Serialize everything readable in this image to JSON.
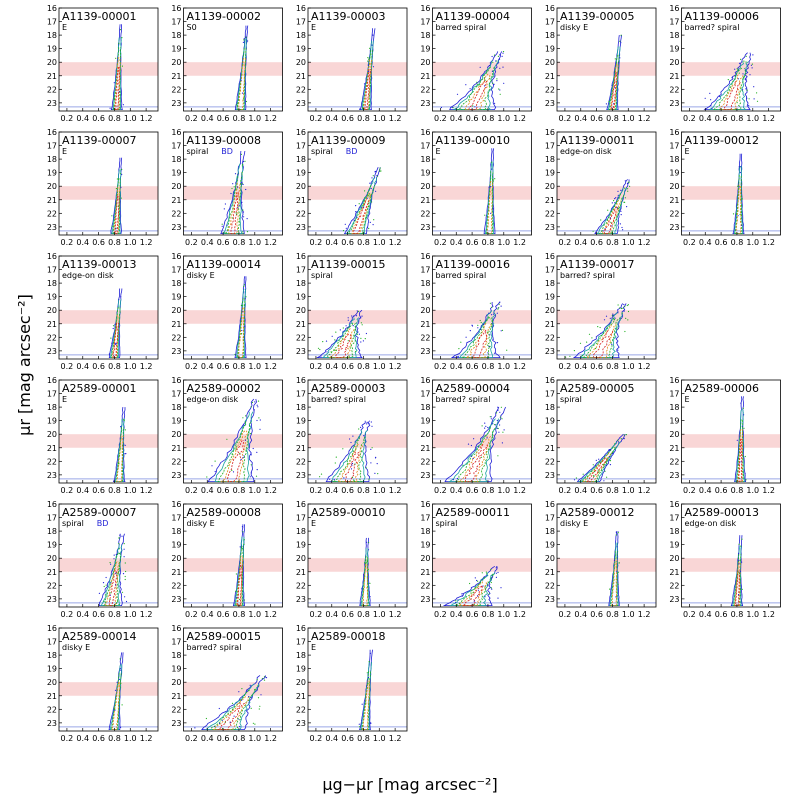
{
  "chart_data": {
    "type": "scatter",
    "layout": "small-multiples-grid",
    "xlabel": "μg−μr [mag arcsec⁻²]",
    "ylabel": "μr [mag arcsec⁻²]",
    "xlim": [
      0.1,
      1.35
    ],
    "ylim": [
      23.6,
      16
    ],
    "x_ticks": [
      "0.2",
      "0.4",
      "0.6",
      "0.8",
      "1.0",
      "1.2"
    ],
    "x_tick_values": [
      0.2,
      0.4,
      0.6,
      0.8,
      1.0,
      1.2
    ],
    "y_ticks": [
      "16",
      "17",
      "18",
      "19",
      "20",
      "21",
      "22",
      "23"
    ],
    "y_tick_values": [
      16,
      17,
      18,
      19,
      20,
      21,
      22,
      23
    ],
    "shaded_band": [
      20,
      21
    ],
    "limit_line": 23.3,
    "panels": [
      {
        "id": "A1139-00001",
        "morph": "E",
        "bd": "",
        "shape": "narrow",
        "tipx": 0.88,
        "tipy": 17.2,
        "basex": 0.83
      },
      {
        "id": "A1139-00002",
        "morph": "S0",
        "bd": "",
        "shape": "narrow",
        "tipx": 0.9,
        "tipy": 17.3,
        "basex": 0.82
      },
      {
        "id": "A1139-00003",
        "morph": "E",
        "bd": "",
        "shape": "narrow",
        "tipx": 0.93,
        "tipy": 17.5,
        "basex": 0.83
      },
      {
        "id": "A1139-00004",
        "morph": "barred spiral",
        "bd": "",
        "shape": "broad",
        "tipx": 0.95,
        "tipy": 19.2,
        "basex": 0.6
      },
      {
        "id": "A1139-00005",
        "morph": "disky E",
        "bd": "",
        "shape": "narrow",
        "tipx": 0.9,
        "tipy": 18.0,
        "basex": 0.8
      },
      {
        "id": "A1139-00006",
        "morph": "barred? spiral",
        "bd": "",
        "shape": "broad",
        "tipx": 0.95,
        "tipy": 19.3,
        "basex": 0.68
      },
      {
        "id": "A1139-00007",
        "morph": "E",
        "bd": "",
        "shape": "narrow",
        "tipx": 0.88,
        "tipy": 17.9,
        "basex": 0.82
      },
      {
        "id": "A1139-00008",
        "morph": "spiral",
        "bd": "BD",
        "shape": "medium",
        "tipx": 0.85,
        "tipy": 17.4,
        "basex": 0.72
      },
      {
        "id": "A1139-00009",
        "morph": "spiral",
        "bd": "BD",
        "shape": "medium",
        "tipx": 1.0,
        "tipy": 18.6,
        "basex": 0.7
      },
      {
        "id": "A1139-00010",
        "morph": "E",
        "bd": "",
        "shape": "narrow",
        "tipx": 0.86,
        "tipy": 17.2,
        "basex": 0.82
      },
      {
        "id": "A1139-00011",
        "morph": "edge-on disk",
        "bd": "",
        "shape": "medium",
        "tipx": 1.0,
        "tipy": 19.5,
        "basex": 0.72
      },
      {
        "id": "A1139-00012",
        "morph": "E",
        "bd": "",
        "shape": "narrow",
        "tipx": 0.85,
        "tipy": 17.6,
        "basex": 0.82
      },
      {
        "id": "A1139-00013",
        "morph": "edge-on disk",
        "bd": "",
        "shape": "narrow",
        "tipx": 0.88,
        "tipy": 18.4,
        "basex": 0.8
      },
      {
        "id": "A1139-00014",
        "morph": "disky E",
        "bd": "",
        "shape": "narrow",
        "tipx": 0.88,
        "tipy": 17.5,
        "basex": 0.82
      },
      {
        "id": "A1139-00015",
        "morph": "spiral",
        "bd": "",
        "shape": "broad",
        "tipx": 0.75,
        "tipy": 20.0,
        "basex": 0.5
      },
      {
        "id": "A1139-00016",
        "morph": "barred spiral",
        "bd": "",
        "shape": "broad",
        "tipx": 0.9,
        "tipy": 19.4,
        "basex": 0.65
      },
      {
        "id": "A1139-00017",
        "morph": "barred? spiral",
        "bd": "",
        "shape": "broad",
        "tipx": 0.95,
        "tipy": 19.5,
        "basex": 0.6
      },
      {
        "id": "A2589-00001",
        "morph": "E",
        "bd": "",
        "shape": "narrow",
        "tipx": 0.92,
        "tipy": 18.0,
        "basex": 0.86
      },
      {
        "id": "A2589-00002",
        "morph": "edge-on disk",
        "bd": "",
        "shape": "broad",
        "tipx": 1.0,
        "tipy": 17.4,
        "basex": 0.7
      },
      {
        "id": "A2589-00003",
        "morph": "barred? spiral",
        "bd": "",
        "shape": "broad",
        "tipx": 0.85,
        "tipy": 19.0,
        "basex": 0.6
      },
      {
        "id": "A2589-00004",
        "morph": "barred? spiral",
        "bd": "",
        "shape": "broad",
        "tipx": 0.98,
        "tipy": 18.0,
        "basex": 0.55
      },
      {
        "id": "A2589-00005",
        "morph": "spiral",
        "bd": "",
        "shape": "medium",
        "tipx": 0.95,
        "tipy": 20.0,
        "basex": 0.5
      },
      {
        "id": "A2589-00006",
        "morph": "E",
        "bd": "",
        "shape": "narrow",
        "tipx": 0.87,
        "tipy": 17.2,
        "basex": 0.84
      },
      {
        "id": "A2589-00007",
        "morph": "spiral",
        "bd": "BD",
        "shape": "medium",
        "tipx": 0.9,
        "tipy": 18.2,
        "basex": 0.75
      },
      {
        "id": "A2589-00008",
        "morph": "disky E",
        "bd": "",
        "shape": "narrow",
        "tipx": 0.86,
        "tipy": 17.5,
        "basex": 0.8
      },
      {
        "id": "A2589-00010",
        "morph": "E",
        "bd": "",
        "shape": "narrow",
        "tipx": 0.85,
        "tipy": 18.5,
        "basex": 0.82
      },
      {
        "id": "A2589-00011",
        "morph": "spiral",
        "bd": "",
        "shape": "broad",
        "tipx": 0.9,
        "tipy": 20.6,
        "basex": 0.55
      },
      {
        "id": "A2589-00012",
        "morph": "disky E",
        "bd": "",
        "shape": "narrow",
        "tipx": 0.86,
        "tipy": 18.0,
        "basex": 0.82
      },
      {
        "id": "A2589-00013",
        "morph": "edge-on disk",
        "bd": "",
        "shape": "narrow",
        "tipx": 0.85,
        "tipy": 18.3,
        "basex": 0.8
      },
      {
        "id": "A2589-00014",
        "morph": "disky E",
        "bd": "",
        "shape": "narrow",
        "tipx": 0.9,
        "tipy": 17.8,
        "basex": 0.8
      },
      {
        "id": "A2589-00015",
        "morph": "barred? spiral",
        "bd": "",
        "shape": "broad",
        "tipx": 1.1,
        "tipy": 19.5,
        "basex": 0.6
      },
      {
        "id": "A2589-00018",
        "morph": "E",
        "bd": "",
        "shape": "narrow",
        "tipx": 0.9,
        "tipy": 17.6,
        "basex": 0.82
      }
    ],
    "panel_slots": [
      0,
      1,
      2,
      3,
      4,
      5,
      6,
      7,
      8,
      9,
      10,
      11,
      12,
      13,
      14,
      15,
      16,
      18,
      19,
      20,
      21,
      22,
      23,
      24,
      25,
      26,
      27,
      28,
      29,
      30,
      31,
      32
    ],
    "colors": {
      "band": "#f9d6d6",
      "limit_line": "#9aa8e8",
      "outer": "#1f1fd6",
      "mid": "#1aa3a3",
      "inner": "#22b022",
      "core": "#e08a1c",
      "center": "#d62020",
      "bd_label": "#1f1fd6"
    }
  }
}
